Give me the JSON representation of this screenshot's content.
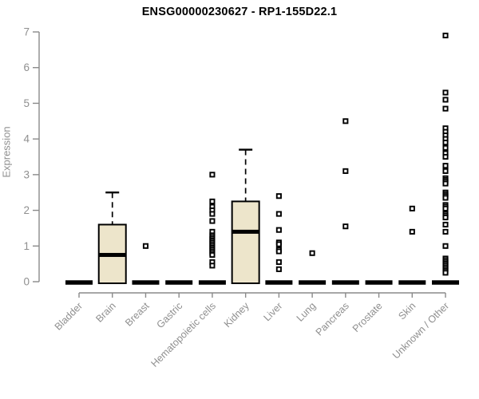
{
  "title": "ENSG00000230627 - RP1-155D22.1",
  "colors": {
    "box_fill": "#ede5cb",
    "box_stroke": "#000000",
    "median": "#000000",
    "collapsed_bar": "#000000",
    "outlier_stroke": "#000000",
    "outlier_fill": "#ffffff",
    "axis_line": "#8a8a8a",
    "axis_text": "#8f8f8f",
    "title_text": "#000000",
    "background": "#ffffff"
  },
  "chart_data": {
    "type": "boxplot",
    "title": "ENSG00000230627 - RP1-155D22.1",
    "xlabel": "",
    "ylabel": "Expression",
    "ylim": [
      0,
      7
    ],
    "yticks": [
      "0",
      "1",
      "2",
      "3",
      "4",
      "5",
      "6",
      "7"
    ],
    "grid": false,
    "legend": false,
    "categories": [
      "Bladder",
      "Brain",
      "Breast",
      "Gastric",
      "Hematopoietic cells",
      "Kidney",
      "Liver",
      "Lung",
      "Pancreas",
      "Prostate",
      "Skin",
      "Unknown / Other"
    ],
    "series": [
      {
        "category": "Bladder",
        "collapsed": true,
        "median": 0,
        "outliers": []
      },
      {
        "category": "Brain",
        "collapsed": false,
        "q1": 0,
        "median": 0.75,
        "q3": 1.6,
        "whisker_low": 0,
        "whisker_high": 2.5,
        "outliers": []
      },
      {
        "category": "Breast",
        "collapsed": true,
        "median": 0,
        "outliers": [
          1.0
        ]
      },
      {
        "category": "Gastric",
        "collapsed": true,
        "median": 0,
        "outliers": []
      },
      {
        "category": "Hematopoietic cells",
        "collapsed": true,
        "median": 0,
        "outliers": [
          3.0,
          2.25,
          2.1,
          2.0,
          1.9,
          1.7,
          1.4,
          1.3,
          1.25,
          1.2,
          1.15,
          1.1,
          1.05,
          1.0,
          0.95,
          0.9,
          0.85,
          0.8,
          0.75,
          0.55,
          0.45
        ]
      },
      {
        "category": "Kidney",
        "collapsed": false,
        "q1": 0,
        "median": 1.4,
        "q3": 2.25,
        "whisker_low": 0,
        "whisker_high": 3.7,
        "outliers": []
      },
      {
        "category": "Liver",
        "collapsed": true,
        "median": 0,
        "outliers": [
          2.4,
          1.9,
          1.45,
          1.1,
          1.05,
          0.9,
          0.85,
          0.55,
          0.35
        ]
      },
      {
        "category": "Lung",
        "collapsed": true,
        "median": 0,
        "outliers": [
          0.8
        ]
      },
      {
        "category": "Pancreas",
        "collapsed": true,
        "median": 0,
        "outliers": [
          4.5,
          3.1,
          1.55
        ]
      },
      {
        "category": "Prostate",
        "collapsed": true,
        "median": 0,
        "outliers": []
      },
      {
        "category": "Skin",
        "collapsed": true,
        "median": 0,
        "outliers": [
          2.05,
          1.4
        ]
      },
      {
        "category": "Unknown / Other",
        "collapsed": true,
        "median": 0,
        "outliers": [
          6.9,
          5.3,
          5.1,
          4.85,
          4.3,
          4.2,
          4.1,
          4.0,
          3.9,
          3.75,
          3.6,
          3.5,
          3.25,
          3.1,
          2.9,
          2.85,
          2.8,
          2.75,
          2.5,
          2.45,
          2.4,
          2.35,
          2.15,
          2.1,
          2.05,
          1.9,
          1.85,
          1.8,
          1.6,
          1.4,
          1.0,
          0.65,
          0.6,
          0.55,
          0.5,
          0.45,
          0.4,
          0.35,
          0.3,
          0.25
        ]
      }
    ]
  }
}
